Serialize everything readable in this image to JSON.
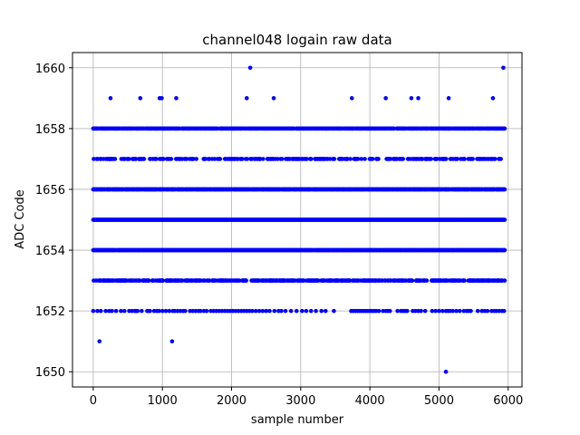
{
  "chart_data": {
    "type": "scatter",
    "title": "channel048 logain raw data",
    "xlabel": "sample number",
    "ylabel": "ADC Code",
    "xlim": [
      -300,
      6200
    ],
    "ylim": [
      1649.5,
      1660.5
    ],
    "xticks": [
      0,
      1000,
      2000,
      3000,
      4000,
      5000,
      6000
    ],
    "yticks": [
      1650,
      1652,
      1654,
      1656,
      1658,
      1660
    ],
    "grid": true,
    "marker_color": "#0000ff",
    "x_range": [
      0,
      5950
    ],
    "dense_bands": [
      {
        "y": 1653,
        "density": 0.5
      },
      {
        "y": 1654,
        "density": 0.97
      },
      {
        "y": 1655,
        "density": 1.0
      },
      {
        "y": 1656,
        "density": 0.9
      },
      {
        "y": 1657,
        "density": 0.3
      },
      {
        "y": 1658,
        "density": 0.7
      }
    ],
    "sparse_bands": [
      {
        "y": 1652,
        "x": [
          0,
          60,
          110,
          180,
          230,
          270,
          330,
          400,
          450,
          520,
          560,
          600,
          620,
          640,
          700,
          780,
          800,
          820,
          880,
          920,
          950,
          1000,
          1050,
          1100,
          1150,
          1180,
          1220,
          1260,
          1300,
          1330,
          1400,
          1440,
          1480,
          1520,
          1550,
          1600,
          1640,
          1700,
          1740,
          1780,
          1820,
          1860,
          1900,
          1940,
          1980,
          2020,
          2060,
          2100,
          2140,
          2180,
          2220,
          2260,
          2300,
          2350,
          2400,
          2450,
          2500,
          2550,
          2620,
          2680,
          2720,
          2780,
          2860,
          2940,
          3020,
          3080,
          3150,
          3220,
          3300,
          3360,
          3480,
          3730,
          3760,
          3790,
          3820,
          3850,
          3880,
          3910,
          3940,
          3970,
          4000,
          4030,
          4060,
          4090,
          4130,
          4190,
          4230,
          4260,
          4290,
          4400,
          4450,
          4480,
          4510,
          4540,
          4620,
          4660,
          4700,
          4740,
          4800,
          4900,
          4950,
          5000,
          5050,
          5100,
          5130,
          5160,
          5200,
          5250,
          5300,
          5360,
          5400,
          5430,
          5460,
          5560,
          5620,
          5660,
          5700,
          5760,
          5800,
          5830,
          5870,
          5910,
          5940
        ]
      },
      {
        "y": 1659,
        "x": [
          250,
          680,
          960,
          990,
          1200,
          2220,
          2610,
          3740,
          4230,
          4600,
          4700,
          5140,
          5780
        ]
      },
      {
        "y": 1660,
        "x": [
          2270,
          5930
        ]
      },
      {
        "y": 1651,
        "x": [
          90,
          1140
        ]
      },
      {
        "y": 1650,
        "x": [
          5100
        ]
      }
    ]
  }
}
